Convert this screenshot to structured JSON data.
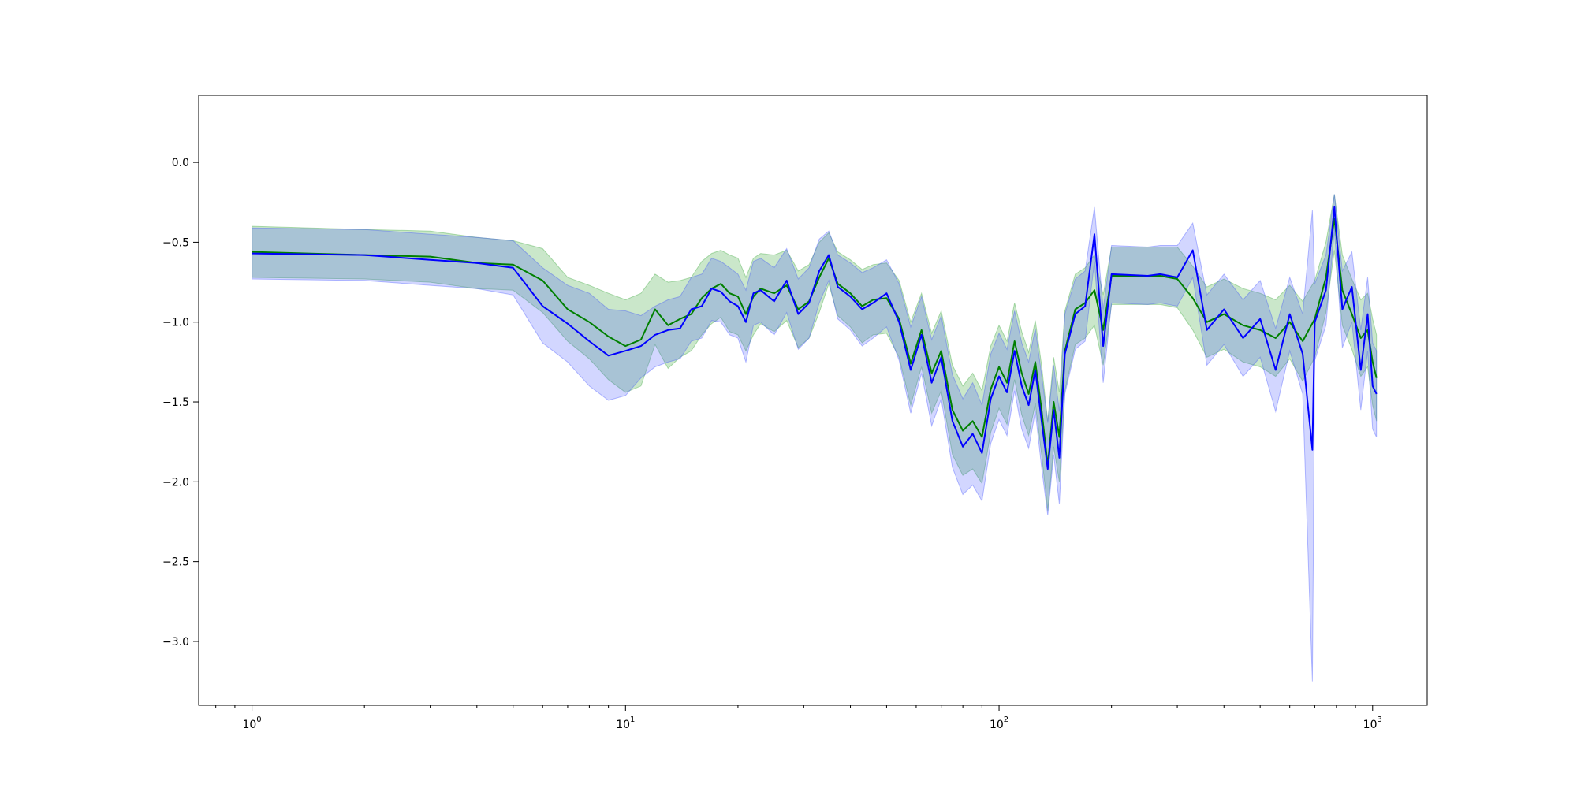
{
  "chart_data": {
    "type": "line",
    "title": "",
    "xlabel": "",
    "ylabel": "",
    "xscale": "log",
    "xlim": [
      0.72,
      1400
    ],
    "ylim": [
      -3.4,
      0.42
    ],
    "grid": false,
    "legend": "none",
    "x_ticks": [
      {
        "value": 1,
        "base": "10",
        "exp": "0"
      },
      {
        "value": 10,
        "base": "10",
        "exp": "1"
      },
      {
        "value": 100,
        "base": "10",
        "exp": "2"
      },
      {
        "value": 1000,
        "base": "10",
        "exp": "3"
      }
    ],
    "y_ticks": [
      {
        "value": 0.0,
        "label": "0.0"
      },
      {
        "value": -0.5,
        "label": "−0.5"
      },
      {
        "value": -1.0,
        "label": "−1.0"
      },
      {
        "value": -1.5,
        "label": "−1.5"
      },
      {
        "value": -2.0,
        "label": "−2.0"
      },
      {
        "value": -2.5,
        "label": "−2.5"
      },
      {
        "value": -3.0,
        "label": "−3.0"
      }
    ],
    "series": [
      {
        "color": "#008000",
        "band_color": "#2ca02c",
        "band_opacity": 0.25,
        "points": [
          [
            1,
            -0.56,
            -0.4,
            -0.72
          ],
          [
            2,
            -0.58,
            -0.42,
            -0.73
          ],
          [
            3,
            -0.59,
            -0.43,
            -0.75
          ],
          [
            4,
            -0.63,
            -0.47,
            -0.79
          ],
          [
            5,
            -0.64,
            -0.49,
            -0.8
          ],
          [
            6,
            -0.74,
            -0.54,
            -0.94
          ],
          [
            7,
            -0.92,
            -0.72,
            -1.12
          ],
          [
            8,
            -1.0,
            -0.77,
            -1.23
          ],
          [
            9,
            -1.09,
            -0.82,
            -1.36
          ],
          [
            10,
            -1.15,
            -0.86,
            -1.44
          ],
          [
            11,
            -1.11,
            -0.82,
            -1.4
          ],
          [
            12,
            -0.92,
            -0.7,
            -1.14
          ],
          [
            13,
            -1.02,
            -0.75,
            -1.29
          ],
          [
            14,
            -0.98,
            -0.74,
            -1.22
          ],
          [
            15,
            -0.95,
            -0.72,
            -1.18
          ],
          [
            16,
            -0.85,
            -0.62,
            -1.08
          ],
          [
            17,
            -0.79,
            -0.57,
            -1.01
          ],
          [
            18,
            -0.76,
            -0.55,
            -0.97
          ],
          [
            19,
            -0.82,
            -0.58,
            -1.06
          ],
          [
            20,
            -0.84,
            -0.6,
            -1.08
          ],
          [
            21,
            -0.95,
            -0.72,
            -1.18
          ],
          [
            22,
            -0.84,
            -0.6,
            -1.08
          ],
          [
            23,
            -0.79,
            -0.57,
            -1.01
          ],
          [
            25,
            -0.82,
            -0.58,
            -1.06
          ],
          [
            27,
            -0.77,
            -0.55,
            -0.99
          ],
          [
            29,
            -0.92,
            -0.68,
            -1.16
          ],
          [
            31,
            -0.87,
            -0.64,
            -1.1
          ],
          [
            33,
            -0.72,
            -0.5,
            -0.94
          ],
          [
            35,
            -0.6,
            -0.44,
            -0.76
          ],
          [
            37,
            -0.76,
            -0.56,
            -0.96
          ],
          [
            40,
            -0.82,
            -0.61,
            -1.03
          ],
          [
            43,
            -0.9,
            -0.67,
            -1.13
          ],
          [
            46,
            -0.86,
            -0.64,
            -1.08
          ],
          [
            50,
            -0.85,
            -0.63,
            -1.07
          ],
          [
            54,
            -0.98,
            -0.74,
            -1.22
          ],
          [
            58,
            -1.26,
            -1.0,
            -1.52
          ],
          [
            62,
            -1.05,
            -0.82,
            -1.28
          ],
          [
            66,
            -1.32,
            -1.07,
            -1.57
          ],
          [
            70,
            -1.18,
            -0.93,
            -1.43
          ],
          [
            75,
            -1.55,
            -1.27,
            -1.83
          ],
          [
            80,
            -1.68,
            -1.4,
            -1.96
          ],
          [
            85,
            -1.62,
            -1.32,
            -1.92
          ],
          [
            90,
            -1.72,
            -1.43,
            -2.01
          ],
          [
            95,
            -1.42,
            -1.15,
            -1.69
          ],
          [
            100,
            -1.28,
            -1.02,
            -1.54
          ],
          [
            105,
            -1.38,
            -1.12,
            -1.64
          ],
          [
            110,
            -1.12,
            -0.88,
            -1.36
          ],
          [
            115,
            -1.32,
            -1.06,
            -1.58
          ],
          [
            120,
            -1.45,
            -1.19,
            -1.71
          ],
          [
            125,
            -1.25,
            -0.99,
            -1.51
          ],
          [
            130,
            -1.55,
            -1.27,
            -1.83
          ],
          [
            135,
            -1.9,
            -1.62,
            -2.18
          ],
          [
            140,
            -1.5,
            -1.22,
            -1.78
          ],
          [
            145,
            -1.72,
            -1.44,
            -2.0
          ],
          [
            150,
            -1.18,
            -0.93,
            -1.43
          ],
          [
            160,
            -0.92,
            -0.7,
            -1.14
          ],
          [
            170,
            -0.88,
            -0.66,
            -1.1
          ],
          [
            180,
            -0.8,
            -0.58,
            -1.02
          ],
          [
            190,
            -1.05,
            -0.83,
            -1.27
          ],
          [
            200,
            -0.71,
            -0.53,
            -0.89
          ],
          [
            250,
            -0.71,
            -0.53,
            -0.89
          ],
          [
            270,
            -0.71,
            -0.53,
            -0.89
          ],
          [
            300,
            -0.73,
            -0.53,
            -0.91
          ],
          [
            330,
            -0.85,
            -0.65,
            -1.05
          ],
          [
            360,
            -1.0,
            -0.78,
            -1.22
          ],
          [
            400,
            -0.95,
            -0.73,
            -1.17
          ],
          [
            450,
            -1.02,
            -0.79,
            -1.25
          ],
          [
            500,
            -1.05,
            -0.82,
            -1.28
          ],
          [
            550,
            -1.1,
            -0.86,
            -1.34
          ],
          [
            600,
            -1.0,
            -0.77,
            -1.23
          ],
          [
            650,
            -1.12,
            -0.87,
            -1.37
          ],
          [
            700,
            -0.98,
            -0.74,
            -1.22
          ],
          [
            750,
            -0.72,
            -0.5,
            -0.94
          ],
          [
            790,
            -0.35,
            -0.2,
            -0.55
          ],
          [
            830,
            -0.8,
            -0.58,
            -1.02
          ],
          [
            880,
            -0.95,
            -0.73,
            -1.17
          ],
          [
            930,
            -1.1,
            -0.86,
            -1.34
          ],
          [
            970,
            -1.05,
            -0.82,
            -1.28
          ],
          [
            1000,
            -1.25,
            -0.98,
            -1.52
          ],
          [
            1024,
            -1.35,
            -1.08,
            -1.62
          ]
        ]
      },
      {
        "color": "#0000ff",
        "band_color": "#3344ff",
        "band_opacity": 0.22,
        "points": [
          [
            1,
            -0.57,
            -0.41,
            -0.73
          ],
          [
            2,
            -0.58,
            -0.42,
            -0.74
          ],
          [
            3,
            -0.61,
            -0.45,
            -0.77
          ],
          [
            4,
            -0.63,
            -0.47,
            -0.79
          ],
          [
            5,
            -0.66,
            -0.49,
            -0.83
          ],
          [
            6,
            -0.9,
            -0.66,
            -1.13
          ],
          [
            7,
            -1.01,
            -0.77,
            -1.25
          ],
          [
            8,
            -1.12,
            -0.82,
            -1.4
          ],
          [
            9,
            -1.21,
            -0.92,
            -1.49
          ],
          [
            10,
            -1.18,
            -0.93,
            -1.46
          ],
          [
            11,
            -1.15,
            -0.96,
            -1.35
          ],
          [
            12,
            -1.08,
            -0.9,
            -1.28
          ],
          [
            13,
            -1.05,
            -0.86,
            -1.25
          ],
          [
            14,
            -1.04,
            -0.84,
            -1.23
          ],
          [
            15,
            -0.92,
            -0.72,
            -1.12
          ],
          [
            16,
            -0.9,
            -0.7,
            -1.1
          ],
          [
            17,
            -0.79,
            -0.6,
            -0.99
          ],
          [
            18,
            -0.81,
            -0.62,
            -1.0
          ],
          [
            19,
            -0.87,
            -0.66,
            -1.08
          ],
          [
            20,
            -0.9,
            -0.7,
            -1.1
          ],
          [
            21,
            -1.0,
            -0.8,
            -1.25
          ],
          [
            22,
            -0.82,
            -0.62,
            -1.02
          ],
          [
            23,
            -0.8,
            -0.6,
            -1.0
          ],
          [
            25,
            -0.87,
            -0.66,
            -1.08
          ],
          [
            27,
            -0.74,
            -0.54,
            -0.94
          ],
          [
            29,
            -0.95,
            -0.73,
            -1.17
          ],
          [
            31,
            -0.88,
            -0.66,
            -1.1
          ],
          [
            33,
            -0.68,
            -0.48,
            -0.88
          ],
          [
            35,
            -0.58,
            -0.43,
            -0.74
          ],
          [
            37,
            -0.78,
            -0.58,
            -0.98
          ],
          [
            40,
            -0.84,
            -0.63,
            -1.05
          ],
          [
            43,
            -0.92,
            -0.69,
            -1.15
          ],
          [
            46,
            -0.88,
            -0.66,
            -1.1
          ],
          [
            50,
            -0.82,
            -0.61,
            -1.03
          ],
          [
            54,
            -1.0,
            -0.76,
            -1.24
          ],
          [
            58,
            -1.3,
            -1.03,
            -1.57
          ],
          [
            62,
            -1.08,
            -0.84,
            -1.32
          ],
          [
            66,
            -1.38,
            -1.11,
            -1.65
          ],
          [
            70,
            -1.22,
            -0.96,
            -1.48
          ],
          [
            75,
            -1.62,
            -1.33,
            -1.91
          ],
          [
            80,
            -1.78,
            -1.48,
            -2.08
          ],
          [
            85,
            -1.7,
            -1.38,
            -2.02
          ],
          [
            90,
            -1.82,
            -1.52,
            -2.12
          ],
          [
            95,
            -1.48,
            -1.2,
            -1.76
          ],
          [
            100,
            -1.34,
            -1.07,
            -1.61
          ],
          [
            105,
            -1.44,
            -1.17,
            -1.71
          ],
          [
            110,
            -1.18,
            -0.93,
            -1.43
          ],
          [
            115,
            -1.4,
            -1.13,
            -1.67
          ],
          [
            120,
            -1.52,
            -1.25,
            -1.79
          ],
          [
            125,
            -1.3,
            -1.04,
            -1.56
          ],
          [
            130,
            -1.62,
            -1.33,
            -1.91
          ],
          [
            135,
            -1.92,
            -1.63,
            -2.21
          ],
          [
            140,
            -1.55,
            -1.27,
            -1.83
          ],
          [
            145,
            -1.85,
            -1.56,
            -2.14
          ],
          [
            150,
            -1.2,
            -0.95,
            -1.45
          ],
          [
            160,
            -0.95,
            -0.73,
            -1.17
          ],
          [
            170,
            -0.9,
            -0.68,
            -1.12
          ],
          [
            180,
            -0.45,
            -0.28,
            -0.62
          ],
          [
            190,
            -1.15,
            -0.92,
            -1.38
          ],
          [
            200,
            -0.7,
            -0.52,
            -0.88
          ],
          [
            250,
            -0.71,
            -0.53,
            -0.89
          ],
          [
            270,
            -0.7,
            -0.52,
            -0.88
          ],
          [
            300,
            -0.72,
            -0.52,
            -0.9
          ],
          [
            330,
            -0.55,
            -0.38,
            -0.72
          ],
          [
            360,
            -1.05,
            -0.83,
            -1.27
          ],
          [
            400,
            -0.92,
            -0.7,
            -1.14
          ],
          [
            450,
            -1.1,
            -0.86,
            -1.34
          ],
          [
            500,
            -0.98,
            -0.74,
            -1.22
          ],
          [
            550,
            -1.3,
            -1.04,
            -1.56
          ],
          [
            600,
            -0.95,
            -0.72,
            -1.18
          ],
          [
            650,
            -1.2,
            -0.95,
            -1.45
          ],
          [
            690,
            -1.8,
            -0.3,
            -3.25
          ],
          [
            700,
            -1.0,
            -0.76,
            -1.24
          ],
          [
            750,
            -0.8,
            -0.58,
            -1.02
          ],
          [
            790,
            -0.28,
            -0.2,
            -0.42
          ],
          [
            830,
            -0.92,
            -0.68,
            -1.16
          ],
          [
            880,
            -0.78,
            -0.56,
            -1.0
          ],
          [
            930,
            -1.3,
            -1.05,
            -1.55
          ],
          [
            970,
            -0.95,
            -0.72,
            -1.18
          ],
          [
            1000,
            -1.4,
            -1.13,
            -1.67
          ],
          [
            1024,
            -1.45,
            -1.18,
            -1.72
          ]
        ]
      }
    ]
  }
}
